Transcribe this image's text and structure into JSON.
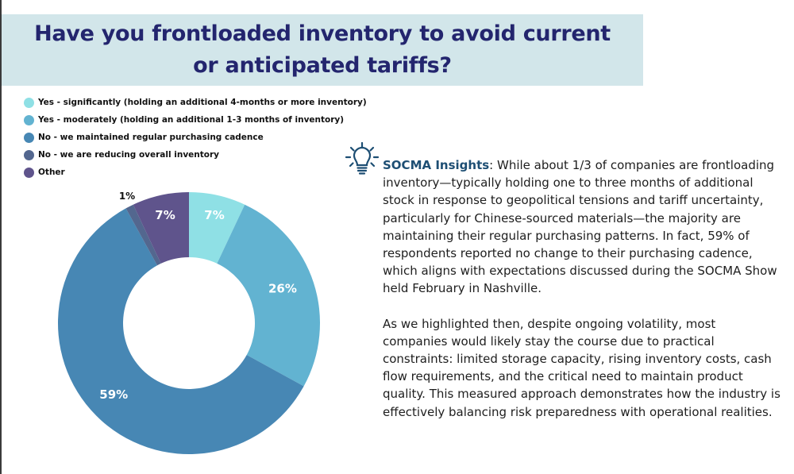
{
  "title": "Have you frontloaded inventory to avoid current or anticipated tariffs?",
  "title_lines": [
    "Have you frontloaded inventory to avoid current",
    "or anticipated tariffs?"
  ],
  "colors": {
    "banner_bg": "#d2e6ea",
    "title_text": "#23256e",
    "insights_lead": "#1d4e73",
    "bulb_icon": "#1d4e73"
  },
  "chart_data": {
    "type": "pie",
    "variant": "donut",
    "title": "Have you frontloaded inventory to avoid current or anticipated tariffs?",
    "unit": "%",
    "start": "top",
    "direction": "clockwise",
    "legend_position": "top-left",
    "categories": [
      "Yes - significantly (holding an additional 4-months or more inventory)",
      "Yes - moderately (holding an additional 1-3 months of inventory)",
      "No - we maintained regular purchasing cadence",
      "No - we are reducing overall inventory",
      "Other"
    ],
    "values": [
      7,
      26,
      59,
      1,
      7
    ],
    "labels": [
      "7%",
      "26%",
      "59%",
      "1%",
      "7%"
    ],
    "label_placement": [
      "inside",
      "inside",
      "inside",
      "outside",
      "inside"
    ],
    "colors": [
      "#8fe0e5",
      "#62b3d1",
      "#4787b4",
      "#53678f",
      "#5f548c"
    ]
  },
  "insights": {
    "icon": "lightbulb-icon",
    "lead": "SOCMA Insights",
    "paragraph1": ": While about 1/3 of companies are frontloading inventory—typically holding one to three months of additional stock in response to geopolitical tensions and tariff uncertainty, particularly for Chinese-sourced materials—the majority are maintaining their regular purchasing patterns. In fact, 59% of respondents reported no change to their purchasing cadence, which aligns with expectations discussed during the SOCMA Show held February in Nashville.",
    "paragraph2": "As we highlighted then, despite ongoing volatility, most companies would likely stay the course due to practical constraints: limited storage capacity, rising inventory costs, cash flow requirements, and the critical need to maintain product quality. This measured approach demonstrates how the industry is effectively balancing risk preparedness with operational realities."
  }
}
